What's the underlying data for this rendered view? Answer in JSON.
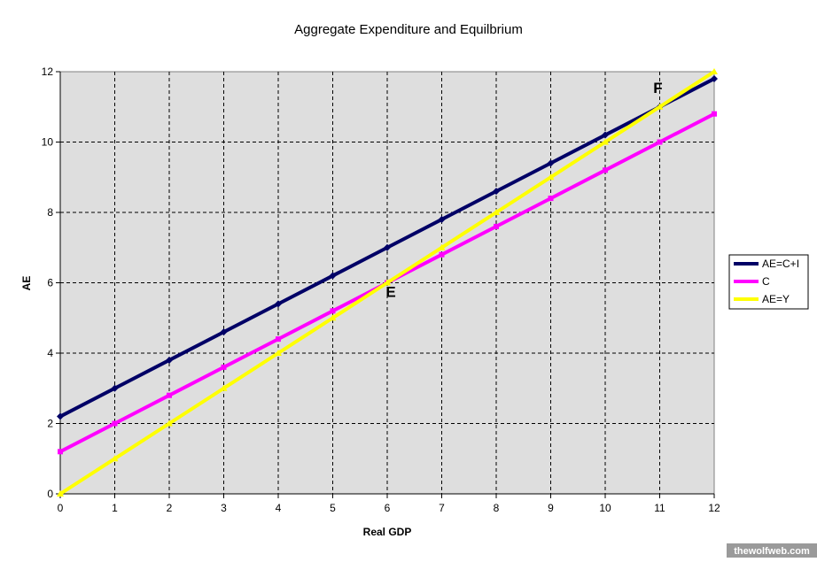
{
  "chart_data": {
    "type": "line",
    "title": "Aggregate Expenditure and Equilbrium",
    "xlabel": "Real GDP",
    "ylabel": "AE",
    "xlim": [
      0,
      12
    ],
    "ylim": [
      0,
      12
    ],
    "x_ticks": [
      0,
      1,
      2,
      3,
      4,
      5,
      6,
      7,
      8,
      9,
      10,
      11,
      12
    ],
    "y_ticks": [
      0,
      2,
      4,
      6,
      8,
      10,
      12
    ],
    "grid": true,
    "legend_position": "right",
    "x": [
      0,
      1,
      2,
      3,
      4,
      5,
      6,
      7,
      8,
      9,
      10,
      11,
      12
    ],
    "series": [
      {
        "name": "AE=C+I",
        "color": "#000066",
        "values": [
          2.2,
          3.0,
          3.8,
          4.6,
          5.4,
          6.2,
          7.0,
          7.8,
          8.6,
          9.4,
          10.2,
          11.0,
          11.8
        ]
      },
      {
        "name": "C",
        "color": "#ff00ff",
        "values": [
          1.2,
          2.0,
          2.8,
          3.6,
          4.4,
          5.2,
          6.0,
          6.8,
          7.6,
          8.4,
          9.2,
          10.0,
          10.8
        ]
      },
      {
        "name": "AE=Y",
        "color": "#ffff00",
        "values": [
          0,
          1,
          2,
          3,
          4,
          5,
          6,
          7,
          8,
          9,
          10,
          11,
          12
        ]
      }
    ],
    "annotations": [
      {
        "text": "E",
        "x": 6,
        "y": 6
      },
      {
        "text": "F",
        "x": 11,
        "y": 11
      }
    ]
  },
  "watermark": "thewolfweb.com"
}
